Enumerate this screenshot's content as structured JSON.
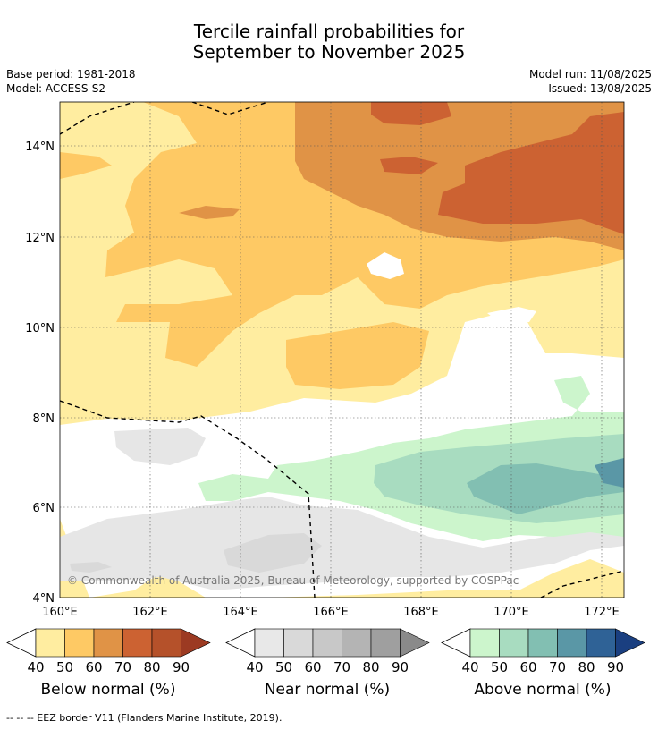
{
  "title_line1": "Tercile rainfall probabilities for",
  "title_line2": "September to November 2025",
  "base_period": "Base period: 1981-2018",
  "model": "Model: ACCESS-S2",
  "model_run": "Model run: 11/08/2025",
  "issued": "Issued: 13/08/2025",
  "copyright": "© Commonwealth of Australia 2025, Bureau of Meteorology, supported by COSPPac",
  "lat_labels": [
    "14°N",
    "12°N",
    "10°N",
    "8°N",
    "6°N",
    "4°N"
  ],
  "lon_labels": [
    "160°E",
    "162°E",
    "164°E",
    "166°E",
    "168°E",
    "170°E",
    "172°E"
  ],
  "colorbars": [
    {
      "label": "Below normal (%)",
      "ticks": [
        "40",
        "50",
        "60",
        "70",
        "80",
        "90"
      ],
      "colors": [
        "#ffeda0",
        "#fec964",
        "#e09346",
        "#cc6232",
        "#b5512a",
        "#9c3a22"
      ]
    },
    {
      "label": "Near normal (%)",
      "ticks": [
        "40",
        "50",
        "60",
        "70",
        "80",
        "90"
      ],
      "colors": [
        "#e8e8e8",
        "#d9d9d9",
        "#c8c8c8",
        "#b4b4b4",
        "#9f9f9f",
        "#8a8a8a"
      ]
    },
    {
      "label": "Above normal (%)",
      "ticks": [
        "40",
        "50",
        "60",
        "70",
        "80",
        "90"
      ],
      "colors": [
        "#ccf5cc",
        "#a8dcc0",
        "#82bfb2",
        "#5a97a6",
        "#2f6296",
        "#1a3f80"
      ]
    }
  ],
  "footer": "--  --  -- EEZ border V11 (Flanders Marine Institute, 2019)."
}
